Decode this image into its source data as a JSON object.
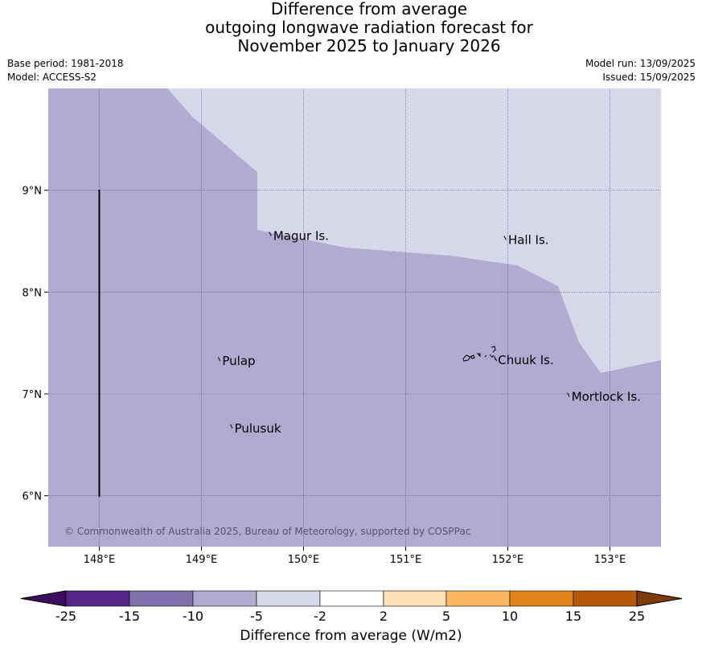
{
  "title": {
    "lines": [
      "Difference from average",
      "outgoing longwave radiation forecast for",
      "November 2025 to January 2026"
    ]
  },
  "meta": {
    "base_period": "Base period: 1981-2018",
    "model": "Model: ACCESS-S2",
    "model_run": "Model run: 13/09/2025",
    "issued": "Issued: 15/09/2025"
  },
  "map": {
    "lon_range": [
      147.5,
      153.5
    ],
    "lat_range": [
      5.5,
      10.0
    ],
    "lon_ticks": [
      "148°E",
      "149°E",
      "150°E",
      "151°E",
      "152°E",
      "153°E"
    ],
    "lat_ticks": [
      "6°N",
      "7°N",
      "8°N",
      "9°N"
    ],
    "places": [
      {
        "name": "Magur Is.",
        "lon": 149.68,
        "lat": 8.56
      },
      {
        "name": "Hall Is.",
        "lon": 151.98,
        "lat": 8.52
      },
      {
        "name": "Pulap",
        "lon": 149.18,
        "lat": 7.33
      },
      {
        "name": "Chuuk Is.",
        "lon": 151.88,
        "lat": 7.34
      },
      {
        "name": "Mortlock Is.",
        "lon": 152.6,
        "lat": 6.98
      },
      {
        "name": "Pulusuk",
        "lon": 149.3,
        "lat": 6.67
      }
    ],
    "copyright": "© Commonwealth of Australia 2025, Bureau of Meteorology, supported by COSPPac",
    "colors": {
      "band_minus10_minus5": "#b1abd2",
      "band_minus5_minus2": "#d7d7ea",
      "land_outline": "#000000"
    }
  },
  "colorbar": {
    "ticks": [
      "-25",
      "-15",
      "-10",
      "-5",
      "-2",
      "2",
      "5",
      "10",
      "15",
      "25"
    ],
    "colors": [
      "#3d0c5e",
      "#552588",
      "#7f70ae",
      "#b1abd2",
      "#d7d7ea",
      "#ffffff",
      "#fee0b4",
      "#fdb662",
      "#e08318",
      "#b35808",
      "#7f3b08"
    ],
    "label": "Difference from average (W/m2)"
  }
}
